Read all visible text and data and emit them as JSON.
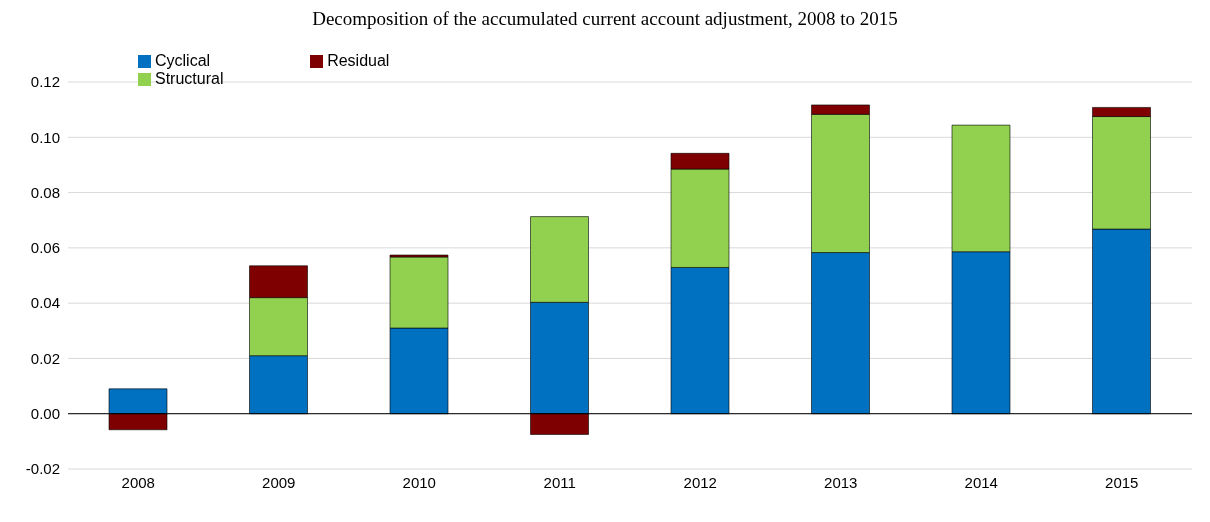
{
  "chart_data": {
    "type": "bar",
    "title": "Decomposition of the accumulated current account adjustment, 2008 to 2015",
    "categories": [
      "2008",
      "2009",
      "2010",
      "2011",
      "2012",
      "2013",
      "2014",
      "2015"
    ],
    "stacked": true,
    "series": [
      {
        "name": "Cyclical",
        "color": "#0070c0",
        "values": [
          0.009,
          0.021,
          0.031,
          0.0403,
          0.0529,
          0.0583,
          0.0586,
          0.0668
        ]
      },
      {
        "name": "Structural",
        "color": "#92d050",
        "values": [
          0,
          0.021,
          0.0257,
          0.031,
          0.0356,
          0.05,
          0.0458,
          0.0407
        ]
      },
      {
        "name": "Residual",
        "color": "#7f0000",
        "values": [
          -0.0058,
          0.0115,
          0.0007,
          -0.0075,
          0.0057,
          0.0034,
          0,
          0.0033
        ]
      }
    ],
    "ylim": [
      -0.02,
      0.12
    ],
    "yticks": [
      {
        "value": -0.02,
        "label": "-0.02"
      },
      {
        "value": 0,
        "label": "0.00"
      },
      {
        "value": 0.02,
        "label": "0.02"
      },
      {
        "value": 0.04,
        "label": "0.04"
      },
      {
        "value": 0.06,
        "label": "0.06"
      },
      {
        "value": 0.08,
        "label": "0.08"
      },
      {
        "value": 0.1,
        "label": "0.10"
      },
      {
        "value": 0.12,
        "label": "0.12"
      }
    ],
    "grid": "y",
    "legend": "top left"
  }
}
